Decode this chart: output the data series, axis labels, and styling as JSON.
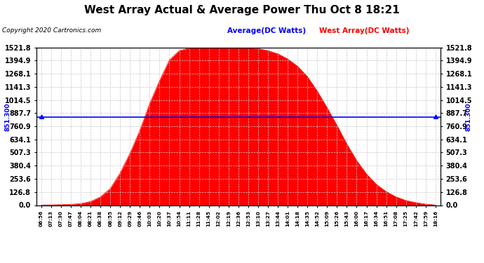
{
  "title": "West Array Actual & Average Power Thu Oct 8 18:21",
  "copyright": "Copyright 2020 Cartronics.com",
  "avg_label": "Average(DC Watts)",
  "west_label": "West Array(DC Watts)",
  "avg_value": 851.3,
  "avg_label_text": "851.300",
  "y_max": 1521.8,
  "y_min": 0.0,
  "y_ticks": [
    0.0,
    126.8,
    253.6,
    380.4,
    507.3,
    634.1,
    760.9,
    887.7,
    1014.5,
    1141.3,
    1268.1,
    1394.9,
    1521.8
  ],
  "x_labels": [
    "06:56",
    "07:13",
    "07:30",
    "07:47",
    "08:04",
    "08:21",
    "08:38",
    "08:55",
    "09:12",
    "09:29",
    "09:46",
    "10:03",
    "10:20",
    "10:37",
    "10:54",
    "11:11",
    "11:28",
    "11:45",
    "12:02",
    "12:19",
    "12:36",
    "12:53",
    "13:10",
    "13:27",
    "13:44",
    "14:01",
    "14:18",
    "14:35",
    "14:52",
    "15:09",
    "15:26",
    "15:43",
    "16:00",
    "16:17",
    "16:34",
    "16:51",
    "17:08",
    "17:25",
    "17:42",
    "17:59",
    "18:16"
  ],
  "bg_color": "#ffffff",
  "fill_color": "#ff0000",
  "line_color": "#0000ff",
  "avg_text_color": "#0000ff",
  "west_text_color": "#ff0000",
  "grid_color": "#c8c8c8",
  "title_color": "#000000",
  "values": [
    2,
    3,
    5,
    8,
    15,
    35,
    80,
    160,
    310,
    500,
    720,
    980,
    1200,
    1400,
    1490,
    1515,
    1520,
    1521,
    1521,
    1521,
    1520,
    1518,
    1510,
    1490,
    1460,
    1410,
    1340,
    1240,
    1100,
    940,
    770,
    590,
    430,
    300,
    200,
    130,
    80,
    45,
    25,
    10,
    2
  ]
}
